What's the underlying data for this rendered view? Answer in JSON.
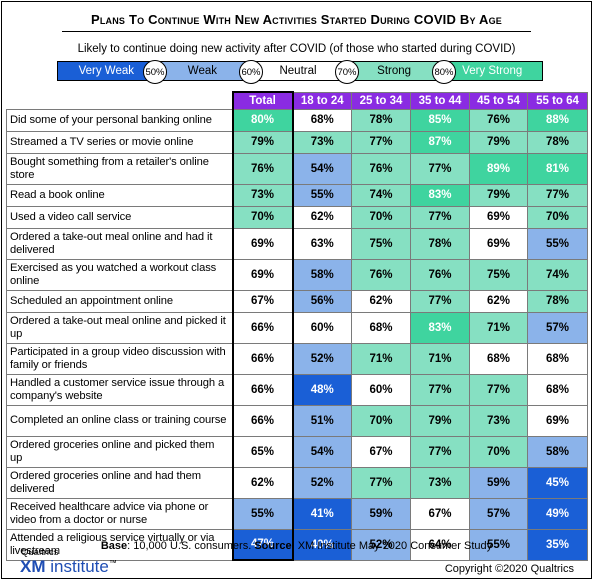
{
  "title": "Plans To Continue With New Activities Started During COVID By Age",
  "subtitle": "Likely to continue doing new activity after COVID (of those who started during COVID)",
  "legend": {
    "segments": [
      {
        "label": "Very Weak",
        "color": "#1a5fd6",
        "text_color": "#ffffff"
      },
      {
        "label": "Weak",
        "color": "#8bb3ea",
        "text_color": "#000000"
      },
      {
        "label": "Neutral",
        "color": "#ffffff",
        "text_color": "#000000"
      },
      {
        "label": "Strong",
        "color": "#86e0c2",
        "text_color": "#000000"
      },
      {
        "label": "Very Strong",
        "color": "#3fd49f",
        "text_color": "#ffffff"
      }
    ],
    "thresholds": [
      "50%",
      "60%",
      "70%",
      "80%"
    ]
  },
  "colors": {
    "header_bg": "#8a2be2",
    "very_weak": "#1a5fd6",
    "weak": "#8bb3ea",
    "neutral": "#ffffff",
    "strong": "#86e0c2",
    "very_strong": "#3fd49f"
  },
  "chart_data": {
    "type": "table",
    "title": "Plans To Continue With New Activities Started During COVID By Age",
    "columns": [
      "Total",
      "18 to 24",
      "25 to 34",
      "35 to 44",
      "45 to 54",
      "55 to 64"
    ],
    "rows": [
      {
        "label": "Did some of your personal banking online",
        "values": [
          80,
          68,
          78,
          85,
          76,
          88
        ]
      },
      {
        "label": "Streamed a TV series or movie online",
        "values": [
          79,
          73,
          77,
          87,
          79,
          78
        ]
      },
      {
        "label": "Bought something from a retailer's online store",
        "values": [
          76,
          54,
          76,
          77,
          89,
          81
        ]
      },
      {
        "label": "Read a book online",
        "values": [
          73,
          55,
          74,
          83,
          79,
          77
        ]
      },
      {
        "label": "Used a video call service",
        "values": [
          70,
          62,
          70,
          77,
          69,
          70
        ]
      },
      {
        "label": "Ordered a take-out meal online and had it delivered",
        "values": [
          69,
          63,
          75,
          78,
          69,
          55
        ]
      },
      {
        "label": "Exercised as you watched a workout class online",
        "values": [
          69,
          58,
          76,
          76,
          75,
          74
        ]
      },
      {
        "label": "Scheduled an appointment online",
        "values": [
          67,
          56,
          62,
          77,
          62,
          78
        ]
      },
      {
        "label": "Ordered a take-out meal online and picked it up",
        "values": [
          66,
          60,
          68,
          83,
          71,
          57
        ]
      },
      {
        "label": "Participated in a group video discussion with family or friends",
        "values": [
          66,
          52,
          71,
          71,
          68,
          68
        ]
      },
      {
        "label": "Handled a customer service issue through a company's website",
        "values": [
          66,
          48,
          60,
          77,
          77,
          68
        ]
      },
      {
        "label": "Completed an online class or training course",
        "values": [
          66,
          51,
          70,
          79,
          73,
          69
        ]
      },
      {
        "label": "Ordered groceries online and picked them up",
        "values": [
          65,
          54,
          67,
          77,
          70,
          58
        ]
      },
      {
        "label": "Ordered groceries online and had them delivered",
        "values": [
          62,
          52,
          77,
          73,
          59,
          45
        ]
      },
      {
        "label": "Received healthcare advice via phone or video from a doctor or nurse",
        "values": [
          55,
          41,
          59,
          67,
          57,
          49
        ]
      },
      {
        "label": "Attended a religious service virtually or via livestream",
        "values": [
          47,
          40,
          52,
          64,
          55,
          35
        ]
      }
    ]
  },
  "footer": {
    "base_label": "Base",
    "base_text": ": 10,000 U.S. consumers. ",
    "source_label": "Source",
    "source_text": ": XM Institute May 2020 Consumer Study"
  },
  "logo": {
    "small": "Qualtrics",
    "xm": "XM",
    "institute": "institute",
    "tm": "™"
  },
  "copyright": "Copyright ©2020 Qualtrics"
}
